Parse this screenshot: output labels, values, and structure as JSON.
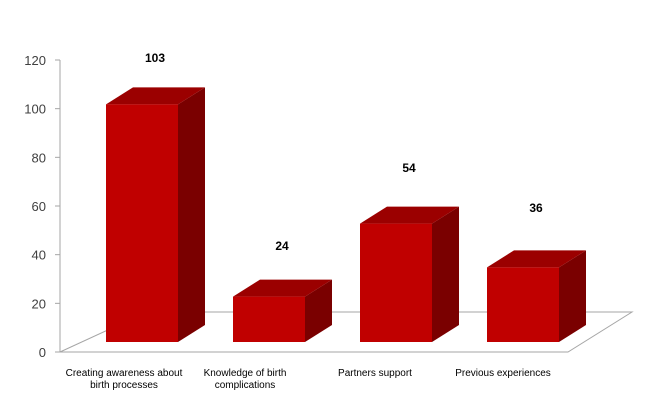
{
  "chart_data": {
    "type": "bar",
    "title": "",
    "xlabel": "",
    "ylabel": "",
    "categories": [
      [
        "Creating awareness about",
        "birth processes"
      ],
      [
        "Knowledge of birth",
        "complications"
      ],
      [
        "Partners support"
      ],
      [
        "Previous experiences"
      ]
    ],
    "values": [
      103,
      24,
      54,
      36
    ],
    "ylim": [
      0,
      120
    ],
    "yticks": [
      0,
      20,
      40,
      60,
      80,
      100,
      120
    ],
    "grid": false,
    "legend": "none",
    "style": "3d",
    "colors": {
      "front": "#c00000",
      "top": "#9b0000",
      "side": "#7a0000",
      "floor_stroke": "#a6a6a6",
      "axis": "#a6a6a6"
    }
  }
}
